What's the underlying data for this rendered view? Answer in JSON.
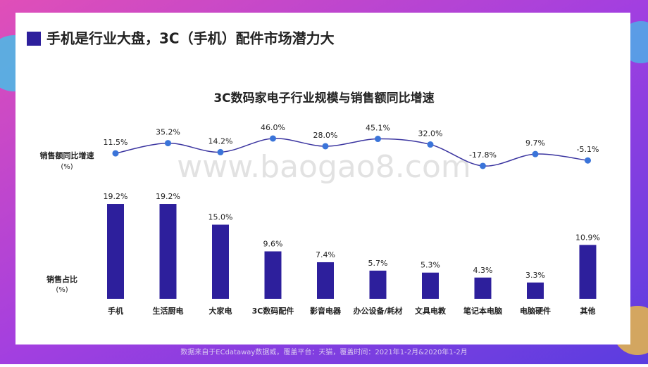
{
  "header": {
    "title": "手机是行业大盘，3C（手机）配件市场潜力大"
  },
  "watermark": "www.baogao8.com",
  "footer": {
    "source": "数据来自于ECdataway数据威，覆盖平台：天猫，覆盖时间：2021年1-2月&2020年1-2月"
  },
  "chart_data": [
    {
      "type": "line",
      "y_label": [
        "销售额同比增速",
        "(%)"
      ],
      "values": [
        11.5,
        35.2,
        14.2,
        46.0,
        28.0,
        45.1,
        32.0,
        -17.8,
        9.7,
        -5.1
      ],
      "value_labels": [
        "11.5%",
        "35.2%",
        "14.2%",
        "46.0%",
        "28.0%",
        "45.1%",
        "32.0%",
        "-17.8%",
        "9.7%",
        "-5.1%"
      ],
      "color": "#3b35a0",
      "marker_color": "#3a74d9"
    },
    {
      "type": "bar",
      "title": "3C数码家电子行业规模与销售额同比增速",
      "y_label": [
        "销售占比",
        "(%)"
      ],
      "categories": [
        "手机",
        "生活厨电",
        "大家电",
        "3C数码配件",
        "影音电器",
        "办公设备/耗材",
        "文具电教",
        "笔记本电脑",
        "电脑硬件",
        "其他"
      ],
      "values": [
        19.2,
        19.2,
        15.0,
        9.6,
        7.4,
        5.7,
        5.3,
        4.3,
        3.3,
        10.9
      ],
      "value_labels": [
        "19.2%",
        "19.2%",
        "15.0%",
        "9.6%",
        "7.4%",
        "5.7%",
        "5.3%",
        "4.3%",
        "3.3%",
        "10.9%"
      ],
      "color": "#2d1f9c"
    }
  ]
}
